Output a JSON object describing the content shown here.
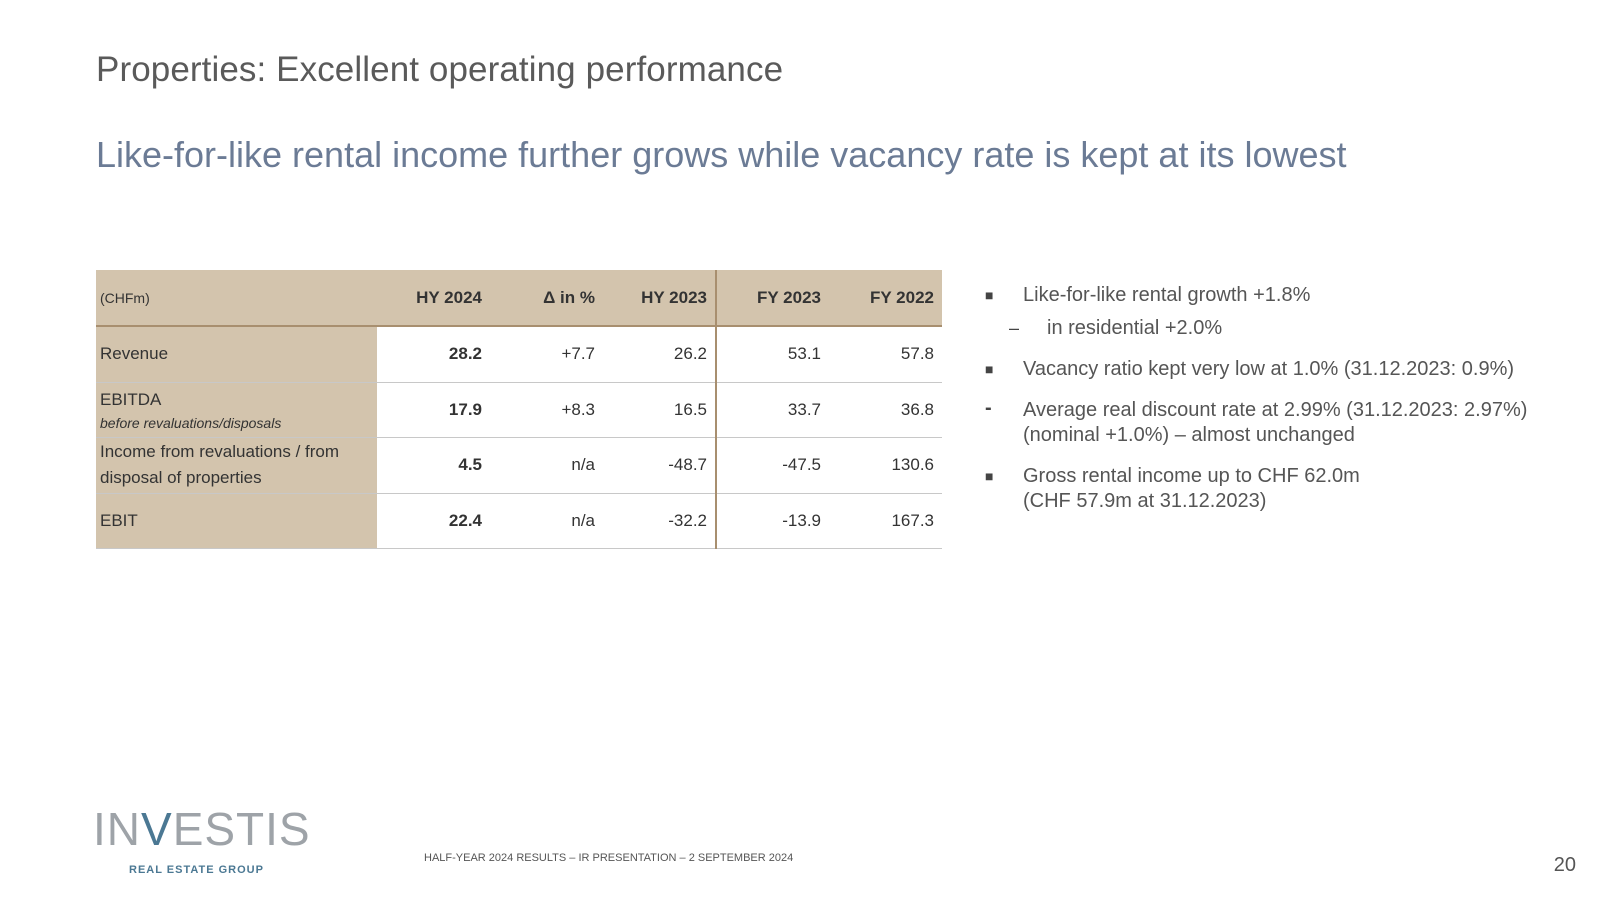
{
  "slide": {
    "title": "Properties: Excellent operating performance",
    "subtitle": "Like-for-like rental income further grows while vacancy rate is kept at its lowest",
    "page_number": "20"
  },
  "table": {
    "headers": [
      "(CHFm)",
      "HY 2024",
      "Δ in %",
      "HY 2023",
      "FY 2023",
      "FY 2022"
    ],
    "rows": [
      {
        "label": "Revenue",
        "sublabel": "",
        "values": [
          "28.2",
          "+7.7",
          "26.2",
          "53.1",
          "57.8"
        ]
      },
      {
        "label": "EBITDA",
        "sublabel": "before revaluations/disposals",
        "values": [
          "17.9",
          "+8.3",
          "16.5",
          "33.7",
          "36.8"
        ]
      },
      {
        "label": "Income from revaluations / from disposal of properties",
        "sublabel": "",
        "values": [
          "4.5",
          "n/a",
          "-48.7",
          "-47.5",
          "130.6"
        ]
      },
      {
        "label": "EBIT",
        "sublabel": "",
        "values": [
          "22.4",
          "n/a",
          "-32.2",
          "-13.9",
          "167.3"
        ]
      }
    ]
  },
  "bullets": [
    {
      "text": "Like-for-like rental growth +1.8%",
      "sub": "in residential +2.0%"
    },
    {
      "text": "Vacancy ratio kept very low at 1.0%  (31.12.2023: 0.9%)"
    },
    {
      "line1": "Average real discount rate at 2.99%  (31.12.2023: 2.97%)",
      "line2": "(nominal +1.0%) – almost unchanged"
    },
    {
      "line1": "Gross rental income up to CHF 62.0m",
      "line2": "(CHF 57.9m at 31.12.2023)"
    }
  ],
  "footer": {
    "logo_text_1": "IN",
    "logo_text_v": "V",
    "logo_text_2": "ESTIS",
    "logo_tagline": "REAL ESTATE GROUP",
    "caption": "HALF-YEAR 2024 RESULTS – IR PRESENTATION – 2 SEPTEMBER 2024"
  },
  "colors": {
    "table_header_bg": "#d3c4ad",
    "subtitle": "#6b7b95",
    "logo_accent": "#4b7893"
  }
}
